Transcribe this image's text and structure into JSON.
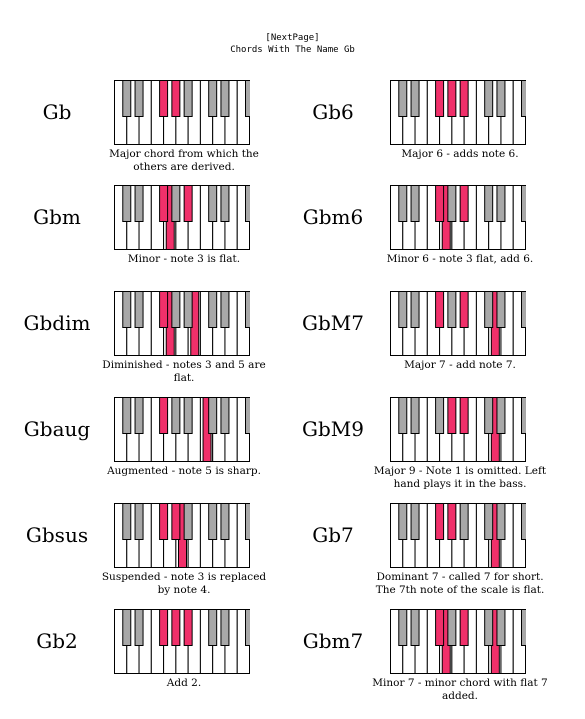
{
  "header": {
    "line1": "[NextPage]",
    "line2": "Chords With The Name Gb"
  },
  "colors": {
    "highlight": "#f0306a",
    "black_key": "#a8a8a8",
    "outline": "#000000"
  },
  "chords": [
    {
      "name": "Gb",
      "desc": "Major chord from which the others are derived.",
      "black": [
        2,
        3
      ],
      "white": []
    },
    {
      "name": "Gbm",
      "desc": "Minor - note 3 is flat.",
      "black": [
        2,
        4
      ],
      "white": [
        4
      ]
    },
    {
      "name": "Gbdim",
      "desc": "Diminished - notes 3 and 5 are flat.",
      "black": [
        2
      ],
      "white": [
        4,
        6
      ]
    },
    {
      "name": "Gbaug",
      "desc": "Augmented - note 5 is sharp.",
      "black": [
        2
      ],
      "white": [
        7
      ]
    },
    {
      "name": "Gbsus",
      "desc": "Suspended - note 3 is replaced by note 4.",
      "black": [
        2,
        3
      ],
      "white": [
        5
      ]
    },
    {
      "name": "Gb2",
      "desc": "Add 2.",
      "black": [
        2,
        3,
        4
      ],
      "white": []
    },
    {
      "name": "Gb6",
      "desc": "Major 6 - adds note 6.",
      "black": [
        2,
        3,
        4
      ],
      "white": []
    },
    {
      "name": "Gbm6",
      "desc": "Minor 6 - note 3 flat, add 6.",
      "black": [
        2,
        4
      ],
      "white": [
        4
      ]
    },
    {
      "name": "GbM7",
      "desc": "Major 7 - add note 7.",
      "black": [
        2,
        4
      ],
      "white": [
        8
      ]
    },
    {
      "name": "GbM9",
      "desc": "Major 9 - Note 1 is omitted. Left hand plays it in the bass.",
      "black": [
        3,
        4
      ],
      "white": [
        8
      ]
    },
    {
      "name": "Gb7",
      "desc": "Dominant 7 - called 7 for short. The 7th note of the scale is flat.",
      "black": [
        2,
        3
      ],
      "white": [
        8
      ]
    },
    {
      "name": "Gbm7",
      "desc": "Minor 7 - minor chord with flat 7 added.",
      "black": [
        2,
        4
      ],
      "white": [
        4,
        8
      ]
    }
  ]
}
